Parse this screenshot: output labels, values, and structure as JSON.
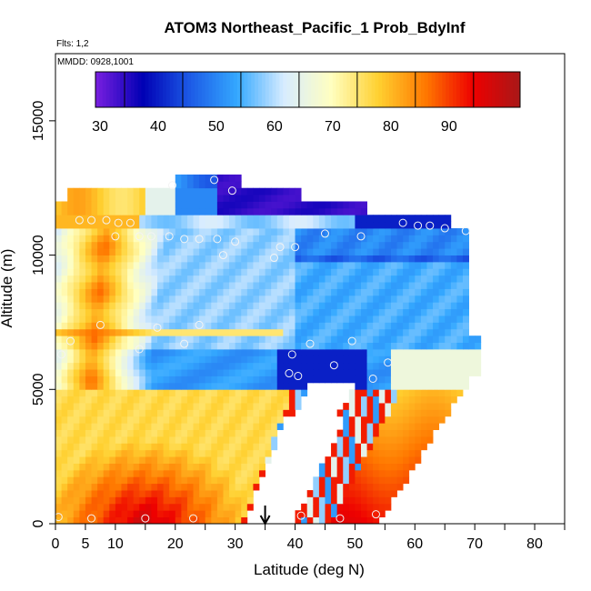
{
  "title": "ATOM3 Northeast_Pacific_1 Prob_BdyInf",
  "flts_label": "Flts: 1,2",
  "mmdd_label": "MMDD: 0928,1001",
  "chart_data": {
    "type": "heatmap",
    "xlabel": "Latitude (deg N)",
    "ylabel": "Altitude (m)",
    "xlim": [
      0,
      85
    ],
    "ylim": [
      0,
      17500
    ],
    "x_ticks": [
      0,
      5,
      10,
      20,
      30,
      40,
      50,
      60,
      70,
      80
    ],
    "y_ticks": [
      0,
      5000,
      10000,
      15000
    ],
    "colorbar": {
      "range": [
        25,
        98
      ],
      "ticks": [
        30,
        40,
        50,
        60,
        70,
        80,
        90
      ],
      "colors": [
        "#7a1fe0",
        "#0000b4",
        "#1c5ae6",
        "#34a8ff",
        "#d8ecff",
        "#ffffc0",
        "#ffd030",
        "#ff7800",
        "#ee0000",
        "#a81818"
      ]
    },
    "marker_latitude": 35,
    "regions": [
      {
        "name": "upper-deep-blue",
        "lat": [
          27,
          52
        ],
        "alt": [
          11300,
          12400
        ],
        "value": 33
      },
      {
        "name": "top-blue",
        "lat": [
          20,
          31
        ],
        "alt": [
          12400,
          12900
        ],
        "value": 38
      },
      {
        "name": "band-11k",
        "lat": [
          50,
          65
        ],
        "alt": [
          10900,
          11500
        ],
        "value": 38
      },
      {
        "name": "west-column-warm",
        "lat": [
          0,
          15
        ],
        "alt": [
          6000,
          11900
        ],
        "value": 72
      },
      {
        "name": "mid-layer-blue",
        "lat": [
          15,
          70
        ],
        "alt": [
          6600,
          10900
        ],
        "value": 52
      },
      {
        "name": "low-layer-blue",
        "lat": [
          38,
          52
        ],
        "alt": [
          5500,
          6400
        ],
        "value": 38
      },
      {
        "name": "surface-warm",
        "lat": [
          0,
          32
        ],
        "alt": [
          0,
          5000
        ],
        "value": 86
      },
      {
        "name": "southeast-warm",
        "lat": [
          52,
          68
        ],
        "alt": [
          0,
          5200
        ],
        "value": 78
      }
    ],
    "markers": [
      {
        "lat": 0.5,
        "alt": 250
      },
      {
        "lat": 6,
        "alt": 200
      },
      {
        "lat": 15,
        "alt": 200
      },
      {
        "lat": 23,
        "alt": 200
      },
      {
        "lat": 41,
        "alt": 300
      },
      {
        "lat": 47.5,
        "alt": 200
      },
      {
        "lat": 53.5,
        "alt": 350
      },
      {
        "lat": 53,
        "alt": 5400
      },
      {
        "lat": 39,
        "alt": 5600
      },
      {
        "lat": 40.5,
        "alt": 5500
      },
      {
        "lat": 46.5,
        "alt": 5900
      },
      {
        "lat": 55.5,
        "alt": 6000
      },
      {
        "lat": 1,
        "alt": 6300
      },
      {
        "lat": 39.5,
        "alt": 6300
      },
      {
        "lat": 14,
        "alt": 6500
      },
      {
        "lat": 21.5,
        "alt": 6700
      },
      {
        "lat": 42.5,
        "alt": 6700
      },
      {
        "lat": 49.5,
        "alt": 6800
      },
      {
        "lat": 2.5,
        "alt": 6800
      },
      {
        "lat": 7.5,
        "alt": 7400
      },
      {
        "lat": 17,
        "alt": 7300
      },
      {
        "lat": 24,
        "alt": 7400
      },
      {
        "lat": 28,
        "alt": 10000
      },
      {
        "lat": 36.5,
        "alt": 9900
      },
      {
        "lat": 37.5,
        "alt": 10300
      },
      {
        "lat": 40,
        "alt": 10300
      },
      {
        "lat": 30,
        "alt": 10500
      },
      {
        "lat": 27,
        "alt": 10600
      },
      {
        "lat": 24,
        "alt": 10600
      },
      {
        "lat": 21.5,
        "alt": 10600
      },
      {
        "lat": 19,
        "alt": 10700
      },
      {
        "lat": 16,
        "alt": 10700
      },
      {
        "lat": 14,
        "alt": 10700
      },
      {
        "lat": 10,
        "alt": 10700
      },
      {
        "lat": 45,
        "alt": 10800
      },
      {
        "lat": 51,
        "alt": 10700
      },
      {
        "lat": 10.5,
        "alt": 11200
      },
      {
        "lat": 4,
        "alt": 11300
      },
      {
        "lat": 6,
        "alt": 11300
      },
      {
        "lat": 8.5,
        "alt": 11300
      },
      {
        "lat": 12.5,
        "alt": 11200
      },
      {
        "lat": 58,
        "alt": 11200
      },
      {
        "lat": 60.5,
        "alt": 11100
      },
      {
        "lat": 62.5,
        "alt": 11100
      },
      {
        "lat": 65,
        "alt": 11000
      },
      {
        "lat": 68.5,
        "alt": 10900
      },
      {
        "lat": 29.5,
        "alt": 12400
      },
      {
        "lat": 26.5,
        "alt": 12800
      },
      {
        "lat": 19.5,
        "alt": 12600
      }
    ]
  }
}
